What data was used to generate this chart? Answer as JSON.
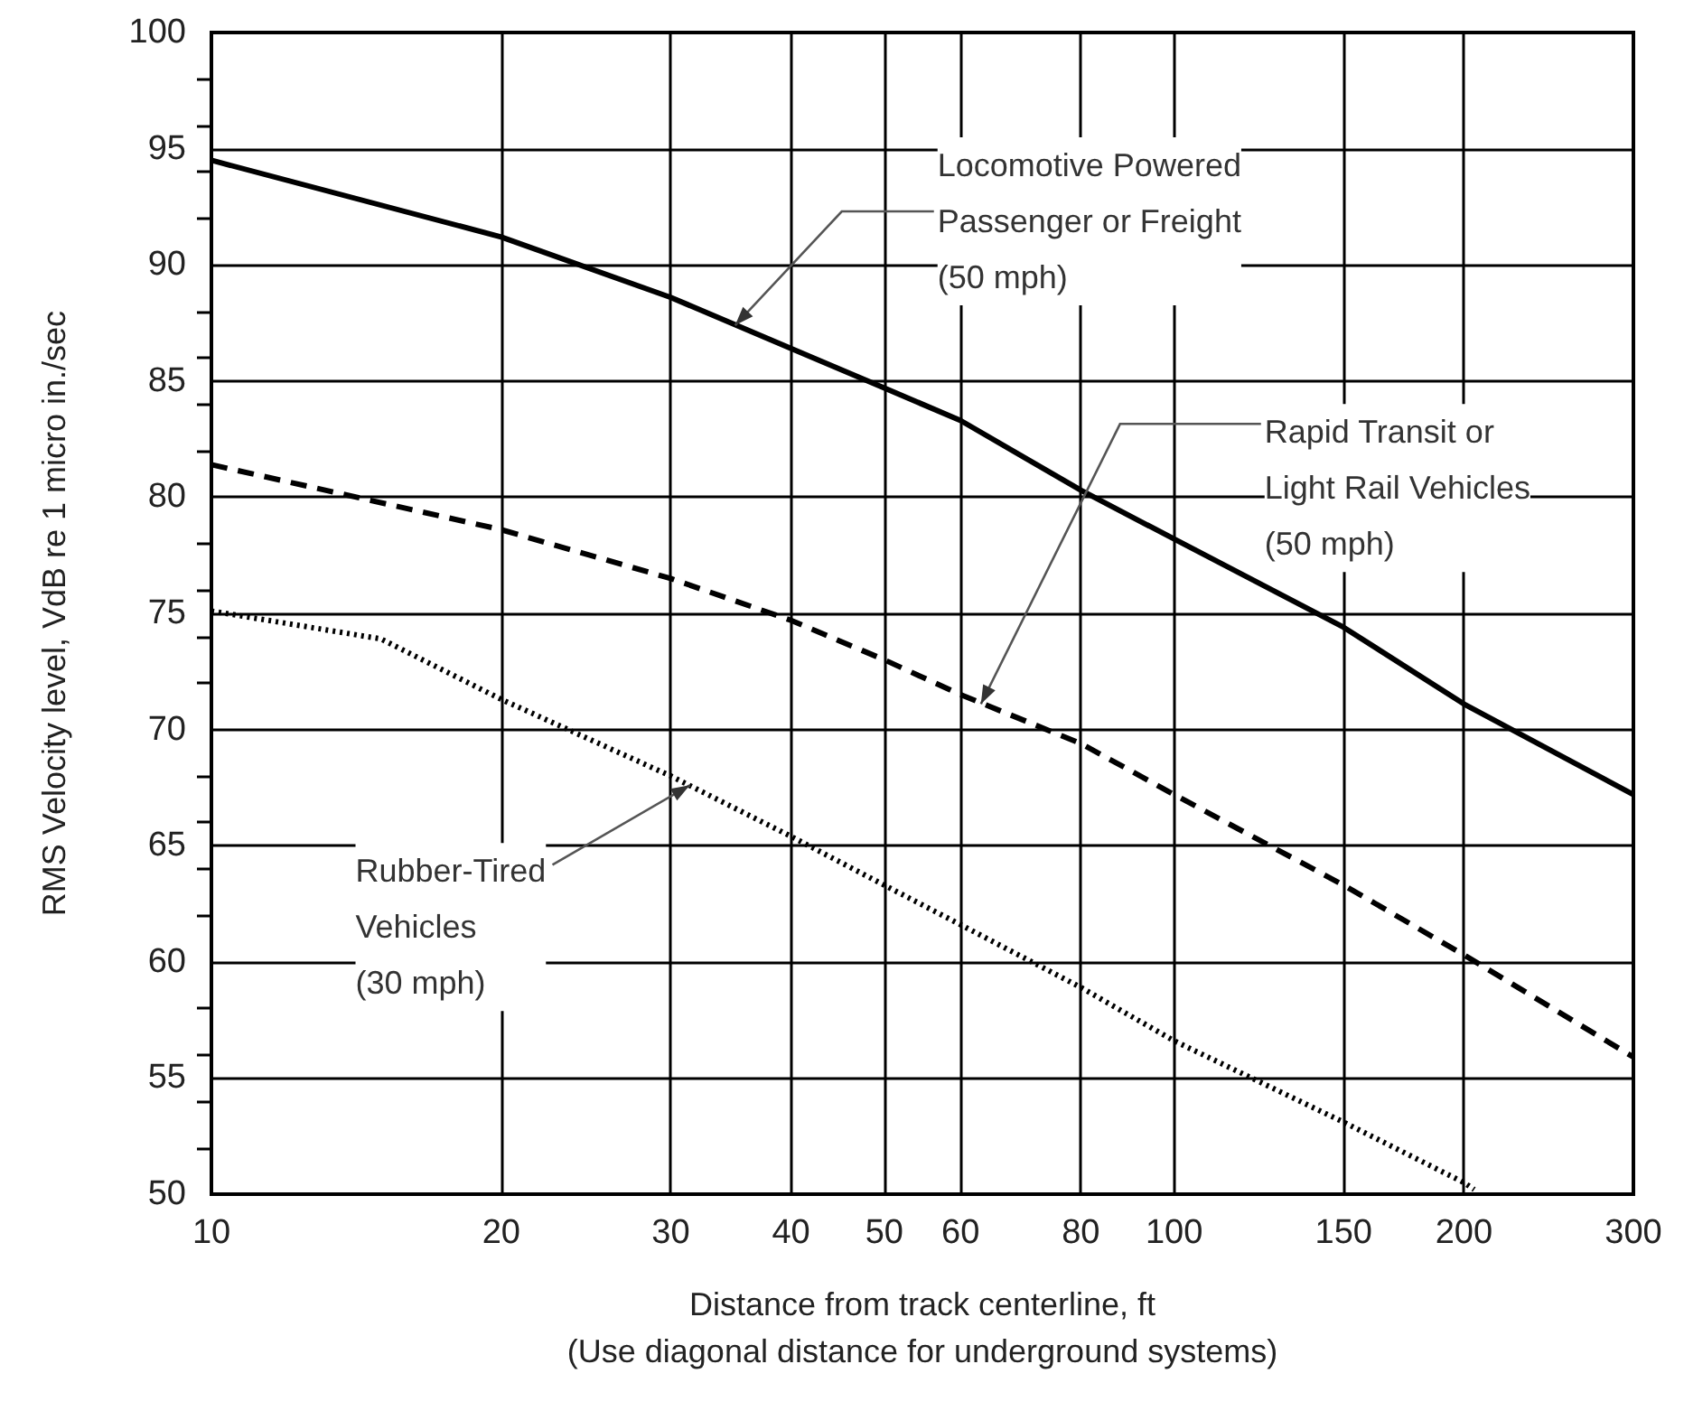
{
  "chart_data": {
    "type": "line",
    "ylabel": "RMS Velocity level, VdB re 1 micro in./sec",
    "xlabel": "Distance from track centerline, ft\n(Use diagonal distance for underground systems)",
    "log": "x",
    "grid": true,
    "marker": "none",
    "xlim": [
      10,
      300
    ],
    "xticks": [
      10,
      20,
      30,
      40,
      50,
      60,
      80,
      100,
      150,
      200,
      300
    ],
    "ylim": [
      50,
      100
    ],
    "yticks": [
      50,
      55,
      60,
      65,
      70,
      75,
      80,
      85,
      90,
      95,
      100
    ],
    "series": [
      {
        "color": "#000000",
        "line_style": "solid",
        "x": [
          10,
          20,
          30,
          40,
          50,
          60,
          80,
          100,
          150,
          200,
          300
        ],
        "values": [
          94.5,
          91.2,
          88.6,
          86.4,
          84.7,
          83.3,
          80.3,
          78.2,
          74.4,
          71.1,
          67.2
        ]
      },
      {
        "color": "#000000",
        "line_style": "dashed",
        "x": [
          10,
          20,
          30,
          40,
          50,
          60,
          80,
          100,
          150,
          200,
          300
        ],
        "values": [
          81.4,
          78.6,
          76.5,
          74.7,
          73.0,
          71.5,
          69.4,
          67.2,
          63.3,
          60.3,
          55.9
        ]
      },
      {
        "color": "#000000",
        "line_style": "dotted",
        "x": [
          10,
          15,
          20,
          30,
          40,
          50,
          60,
          80,
          100,
          150,
          200,
          205
        ],
        "values": [
          75.1,
          73.9,
          71.3,
          68.0,
          65.4,
          63.3,
          61.6,
          58.9,
          56.6,
          53.1,
          50.5,
          50.2
        ]
      }
    ],
    "annotations": [
      {
        "text": "Locomotive Powered\nPassenger or Freight\n(50 mph)",
        "x": 35,
        "y": 87.4
      },
      {
        "text": "Rapid Transit or\nLight Rail Vehicles\n(50 mph)",
        "x": 63,
        "y": 71.1
      },
      {
        "text": "Rubber-Tired\nVehicles\n(30 mph)",
        "x": 31.4,
        "y": 67.6
      }
    ]
  }
}
